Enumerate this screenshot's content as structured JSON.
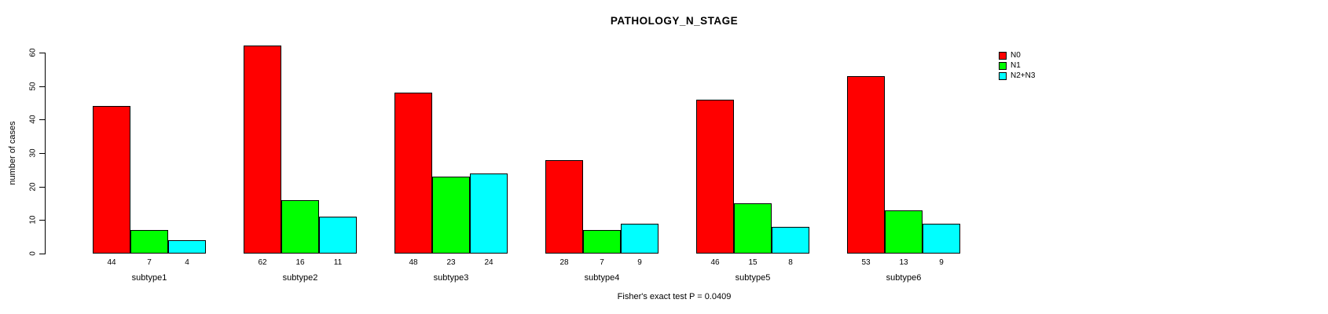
{
  "title": "PATHOLOGY_N_STAGE",
  "footer": "Fisher's exact test P = 0.0409",
  "chart_data": {
    "type": "bar",
    "title": "PATHOLOGY_N_STAGE",
    "ylabel": "number of cases",
    "xlabel": "",
    "annotation": "Fisher's exact test P = 0.0409",
    "categories": [
      "subtype1",
      "subtype2",
      "subtype3",
      "subtype4",
      "subtype5",
      "subtype6"
    ],
    "series": [
      {
        "name": "N0",
        "color": "#FF0000",
        "values": [
          44,
          62,
          48,
          28,
          46,
          53
        ]
      },
      {
        "name": "N1",
        "color": "#00FF00",
        "values": [
          7,
          16,
          23,
          7,
          15,
          13
        ]
      },
      {
        "name": "N2+N3",
        "color": "#00FFFF",
        "values": [
          4,
          11,
          24,
          9,
          8,
          9
        ]
      }
    ],
    "bar_value_labels": true,
    "ylim": [
      0,
      60
    ],
    "yticks": [
      0,
      10,
      20,
      30,
      40,
      50,
      60
    ],
    "grid": false,
    "legend_position": "right",
    "legend": [
      {
        "label": "N0",
        "color": "#FF0000"
      },
      {
        "label": "N1",
        "color": "#00FF00"
      },
      {
        "label": "N2+N3",
        "color": "#00FFFF"
      }
    ]
  }
}
